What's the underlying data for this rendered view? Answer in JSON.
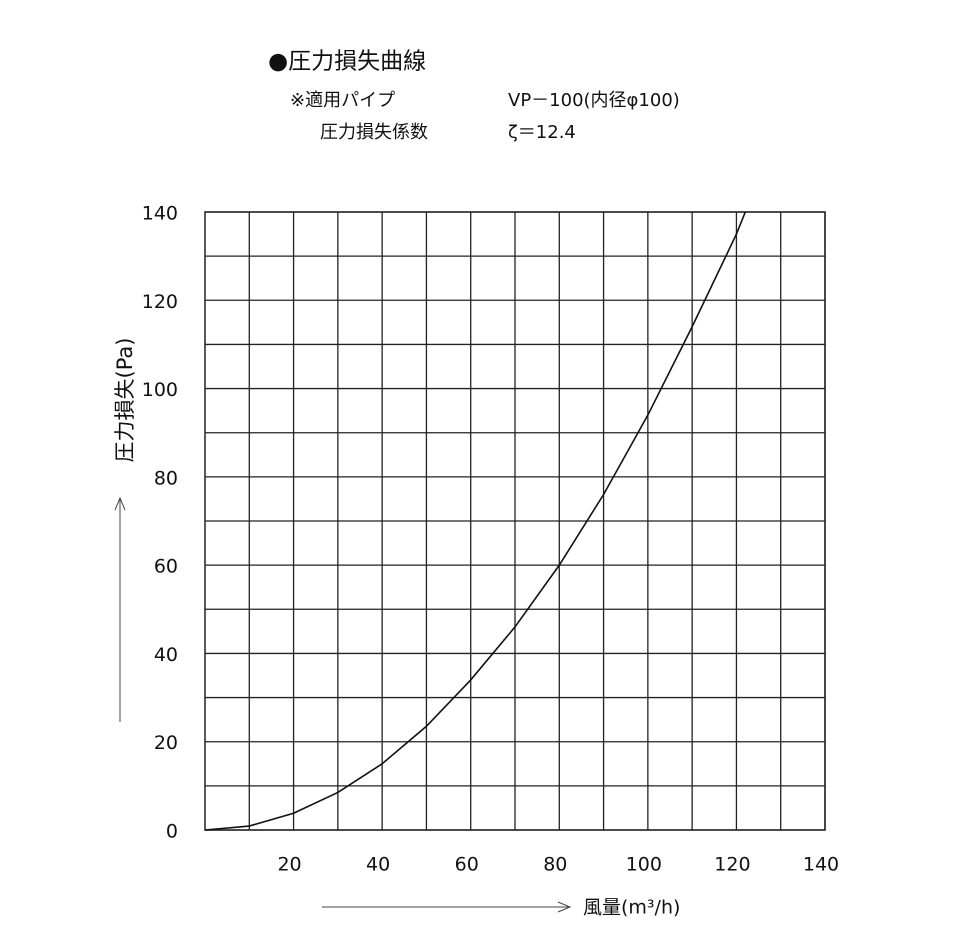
{
  "chart_data": {
    "type": "line",
    "title": "●圧力損失曲線",
    "subtitle_label_1": "※適用パイプ",
    "subtitle_value_1": "VP－100(内径φ100)",
    "subtitle_label_2": "圧力損失係数",
    "subtitle_value_2": "ζ＝12.4",
    "y_label": "圧力損失(Pa)",
    "x_label": "風量(m³/h)",
    "x": [
      0,
      10,
      20,
      30,
      40,
      50,
      60,
      70,
      80,
      90,
      100,
      110,
      120,
      122
    ],
    "series": [
      {
        "name": "圧力損失",
        "color": "#111111",
        "values": [
          0,
          0.9,
          3.8,
          8.5,
          15,
          23.5,
          34,
          46,
          60,
          76,
          94,
          114,
          135,
          140
        ]
      }
    ],
    "xlim": [
      0,
      140
    ],
    "ylim": [
      0,
      140
    ],
    "xticks": [
      20,
      40,
      60,
      80,
      100,
      120,
      140
    ],
    "yticks": [
      0,
      20,
      40,
      60,
      80,
      100,
      120,
      140
    ],
    "x_minor_grid": [
      10,
      30,
      50,
      70,
      90,
      110,
      130
    ],
    "y_minor_grid": [
      10,
      30,
      50,
      70,
      90,
      110,
      130
    ],
    "grid": true
  }
}
